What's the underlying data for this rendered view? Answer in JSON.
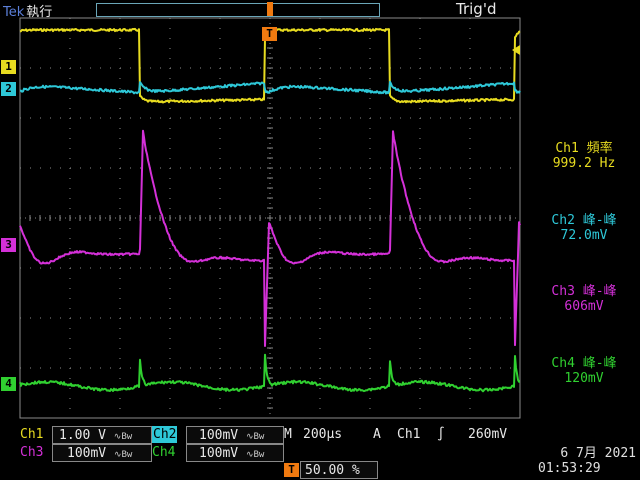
{
  "header": {
    "brand": "Tek",
    "mode": "執行",
    "trigger_status": "Trig'd"
  },
  "readouts": [
    {
      "channel": "Ch1",
      "label": "Ch1 頻率",
      "value": "999.2 Hz",
      "color": "#e8dc20"
    },
    {
      "channel": "Ch2",
      "label": "Ch2 峰-峰",
      "value": "72.0mV",
      "color": "#2ec8d8"
    },
    {
      "channel": "Ch3",
      "label": "Ch3 峰-峰",
      "value": "606mV",
      "color": "#d430d8"
    },
    {
      "channel": "Ch4",
      "label": "Ch4 峰-峰",
      "value": "120mV",
      "color": "#30d030"
    }
  ],
  "channel_markers": [
    "1",
    "2",
    "3",
    "4"
  ],
  "trigger_marker": "T",
  "settings": {
    "ch1": {
      "name": "Ch1",
      "scale": "1.00 V"
    },
    "ch2": {
      "name": "Ch2",
      "scale": "100mV"
    },
    "ch3": {
      "name": "Ch3",
      "scale": "100mV"
    },
    "ch4": {
      "name": "Ch4",
      "scale": "100mV"
    },
    "bw_symbol": "∿Bw",
    "timebase_label": "M",
    "timebase": "200µs",
    "trigger_mode": "A",
    "trigger_source": "Ch1",
    "trigger_slope": "∫",
    "trigger_level": "260mV",
    "position_label": "T",
    "position": "50.00 %"
  },
  "timestamp": {
    "date": "6 7月  2021",
    "time": "01:53:29"
  },
  "colors": {
    "ch1": "#e8dc20",
    "ch2": "#2ec8d8",
    "ch3": "#d430d8",
    "ch4": "#30d030",
    "trigger": "#f07a10",
    "grid": "#8a8a8a"
  }
}
